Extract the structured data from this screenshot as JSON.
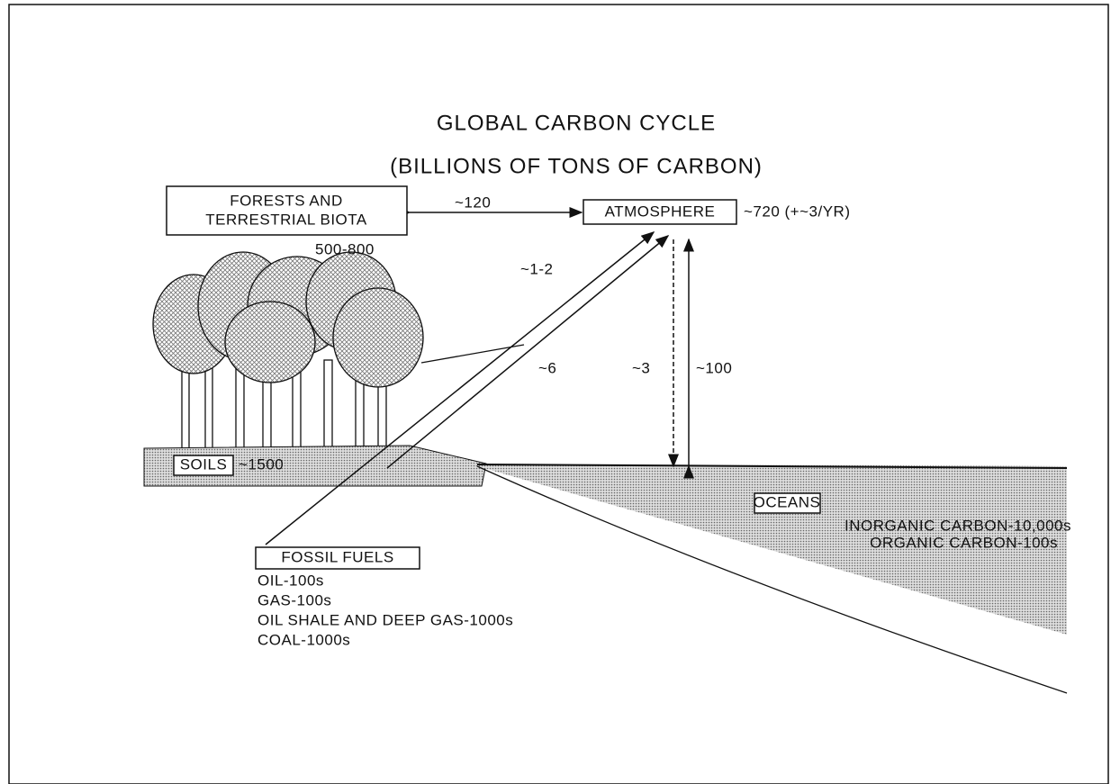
{
  "title": "GLOBAL CARBON CYCLE",
  "subtitle": "(BILLIONS OF TONS OF CARBON)",
  "forests": {
    "label_lines": [
      "FORESTS AND",
      "TERRESTRIAL BIOTA"
    ],
    "amount": "500-800"
  },
  "atmosphere": {
    "label": "ATMOSPHERE",
    "amount": "~720 (+~3/YR)"
  },
  "soils": {
    "label": "SOILS",
    "amount": "~1500"
  },
  "oceans": {
    "label": "OCEANS",
    "lines": [
      "INORGANIC CARBON-10,000s",
      "ORGANIC CARBON-100s"
    ]
  },
  "fossil_fuels": {
    "label": "FOSSIL FUELS",
    "lines": [
      "OIL-100s",
      "GAS-100s",
      "OIL SHALE AND DEEP GAS-1000s",
      "COAL-1000s"
    ]
  },
  "flows": {
    "forests_atmosphere": "~120",
    "fossil_to_atmosphere": "~1-2",
    "land_to_atmosphere": "~6",
    "atmosphere_to_ocean": "~3",
    "ocean_exchange": "~100"
  }
}
